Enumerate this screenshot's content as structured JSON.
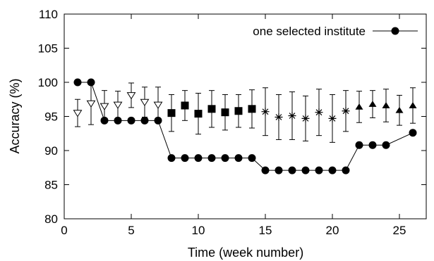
{
  "chart_data": {
    "type": "scatter",
    "xlabel": "Time (week number)",
    "ylabel": "Accuracy (%)",
    "xlim": [
      0,
      27
    ],
    "ylim": [
      80,
      110
    ],
    "xticks": [
      0,
      5,
      10,
      15,
      20,
      25
    ],
    "yticks": [
      80,
      85,
      90,
      95,
      100,
      105,
      110
    ],
    "grid": false,
    "legend_position": "top-right",
    "series": [
      {
        "name": "one selected institute",
        "marker": "filled-circle",
        "line": true,
        "x": [
          1,
          2,
          3,
          4,
          5,
          6,
          7,
          8,
          9,
          10,
          11,
          12,
          13,
          14,
          15,
          16,
          17,
          18,
          19,
          20,
          21,
          22,
          23,
          24,
          26
        ],
        "y": [
          100,
          100,
          94.4,
          94.4,
          94.4,
          94.4,
          94.4,
          88.9,
          88.9,
          88.9,
          88.9,
          88.9,
          88.9,
          88.9,
          87.1,
          87.1,
          87.1,
          87.1,
          87.1,
          87.1,
          87.1,
          90.8,
          90.8,
          90.8,
          92.6
        ]
      },
      {
        "marker": "open-triangle-down",
        "line": false,
        "x": [
          1,
          2,
          3,
          4,
          5,
          6,
          7
        ],
        "y": [
          95.5,
          96.9,
          96.5,
          96.7,
          98.1,
          97.1,
          96.7
        ],
        "err": [
          2.0,
          3.1,
          2.3,
          2.0,
          1.8,
          2.2,
          2.6
        ]
      },
      {
        "marker": "filled-square",
        "line": false,
        "x": [
          8,
          9,
          10,
          11,
          12,
          13,
          14
        ],
        "y": [
          95.5,
          96.6,
          95.4,
          96.1,
          95.6,
          95.8,
          96.1
        ],
        "err": [
          2.7,
          2.2,
          3.0,
          2.7,
          2.6,
          2.4,
          2.8
        ]
      },
      {
        "marker": "asterisk",
        "line": false,
        "x": [
          15,
          16,
          17,
          18,
          19,
          20,
          21
        ],
        "y": [
          95.7,
          94.9,
          95.1,
          94.7,
          95.6,
          94.7,
          95.8
        ],
        "err": [
          3.5,
          3.3,
          3.5,
          3.3,
          3.4,
          3.5,
          3.0
        ]
      },
      {
        "marker": "filled-triangle-up",
        "line": false,
        "x": [
          22,
          23,
          24,
          25,
          26
        ],
        "y": [
          96.4,
          96.8,
          96.6,
          95.9,
          96.6
        ],
        "err": [
          2.3,
          2.0,
          2.4,
          2.2,
          2.6
        ]
      }
    ]
  }
}
